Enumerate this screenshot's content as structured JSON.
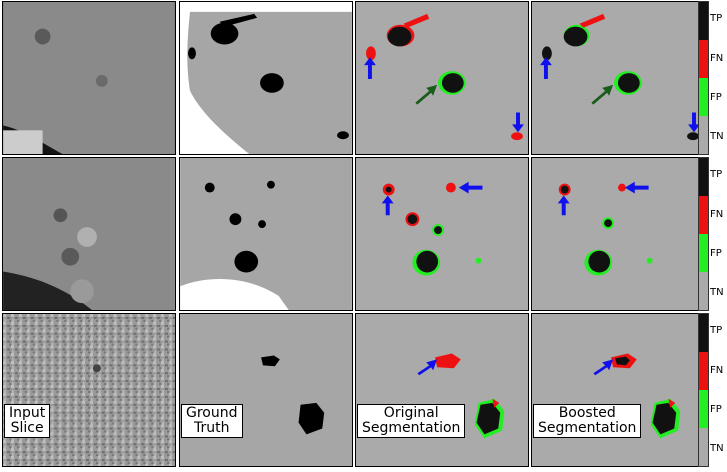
{
  "captions": {
    "input": "Input\nSlice",
    "ground_truth": "Ground\nTruth",
    "original": "Original\nSegmentation",
    "boosted": "Boosted\nSegmentation"
  },
  "legend": {
    "labels": [
      "TP",
      "FN",
      "FP",
      "TN"
    ],
    "colors": {
      "TP": "#111111",
      "FN": "#ee1111",
      "FP": "#22ee22",
      "TN": "#aaaaaa"
    }
  },
  "colors": {
    "liver": "#a6a6a6",
    "tumor": "#000000",
    "background": "#ffffff",
    "ct_dark": "#1a1a1a",
    "ct_tissue": "#8c8c8c",
    "arrow_blue": "#1010ee",
    "arrow_green": "#1a5c1a"
  },
  "icons": [
    "arrow-icon"
  ]
}
